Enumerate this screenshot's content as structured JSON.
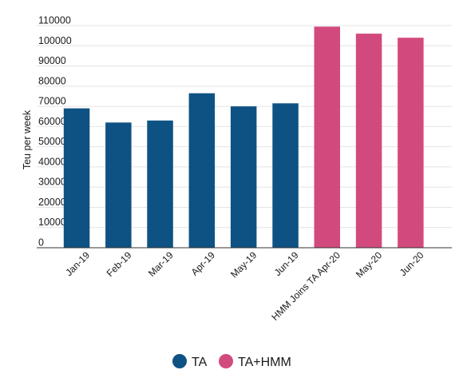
{
  "chart_data": {
    "type": "bar",
    "title": "",
    "xlabel": "",
    "ylabel": "Teu per week",
    "ylim": [
      0,
      110000
    ],
    "yticks": [
      0,
      10000,
      20000,
      30000,
      40000,
      50000,
      60000,
      70000,
      80000,
      90000,
      100000,
      110000
    ],
    "grid": true,
    "legend_position": "bottom-center",
    "categories": [
      "Jan-19",
      "Feb-19",
      "Mar-19",
      "Apr-19",
      "May-19",
      "Jun-19",
      "HMM Joins TA Apr-20",
      "May-20",
      "Jun-20"
    ],
    "values": [
      69000,
      62000,
      63000,
      76500,
      70000,
      71500,
      109500,
      106000,
      104000
    ],
    "bar_series": [
      "TA",
      "TA",
      "TA",
      "TA",
      "TA",
      "TA",
      "TA+HMM",
      "TA+HMM",
      "TA+HMM"
    ],
    "series": [
      {
        "name": "TA",
        "color": "#0e5283"
      },
      {
        "name": "TA+HMM",
        "color": "#d24a7d"
      }
    ]
  }
}
